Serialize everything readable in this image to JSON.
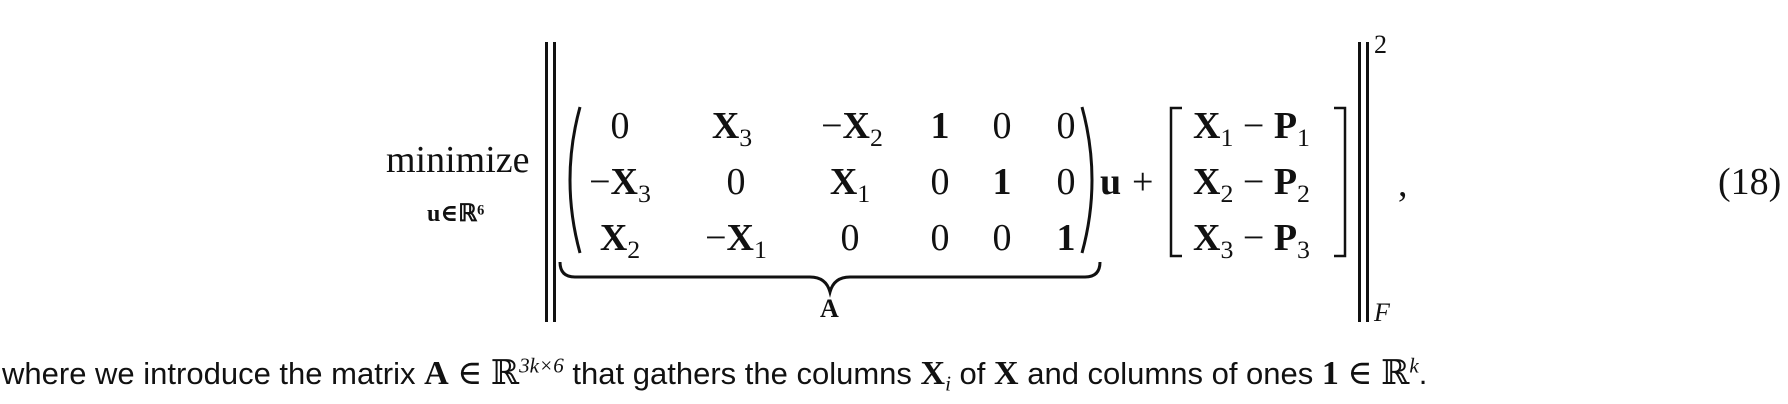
{
  "equation": {
    "operator": "minimize",
    "operator_sub": "u∈ℝ⁶",
    "matrix_A": [
      [
        "0",
        "X_3",
        "−X_2",
        "1",
        "0",
        "0"
      ],
      [
        "−X_3",
        "0",
        "X_1",
        "0",
        "1",
        "0"
      ],
      [
        "X_2",
        "−X_1",
        "0",
        "0",
        "0",
        "1"
      ]
    ],
    "matrix_label": "A",
    "u_symbol": "u",
    "plus": "+",
    "vector_rows": [
      {
        "x": "X",
        "xi": "1",
        "minus": " − ",
        "p": "P",
        "pi": "1"
      },
      {
        "x": "X",
        "xi": "2",
        "minus": " − ",
        "p": "P",
        "pi": "2"
      },
      {
        "x": "X",
        "xi": "3",
        "minus": " − ",
        "p": "P",
        "pi": "3"
      }
    ],
    "norm_power": "2",
    "norm_sub": "F",
    "trailing": ",",
    "number": "(18)"
  },
  "text": {
    "part1": "where we introduce the matrix ",
    "A": "A",
    "in1": " ∈ ",
    "R1": "ℝ",
    "dim": "3k×6",
    "part2": " that gathers the columns ",
    "Xi": "X",
    "i": "i",
    "part3": " of ",
    "X": "X",
    "part4": " and columns of ones ",
    "one": "1",
    "in2": " ∈ ",
    "R2": "ℝ",
    "k": "k",
    "part5": "."
  }
}
